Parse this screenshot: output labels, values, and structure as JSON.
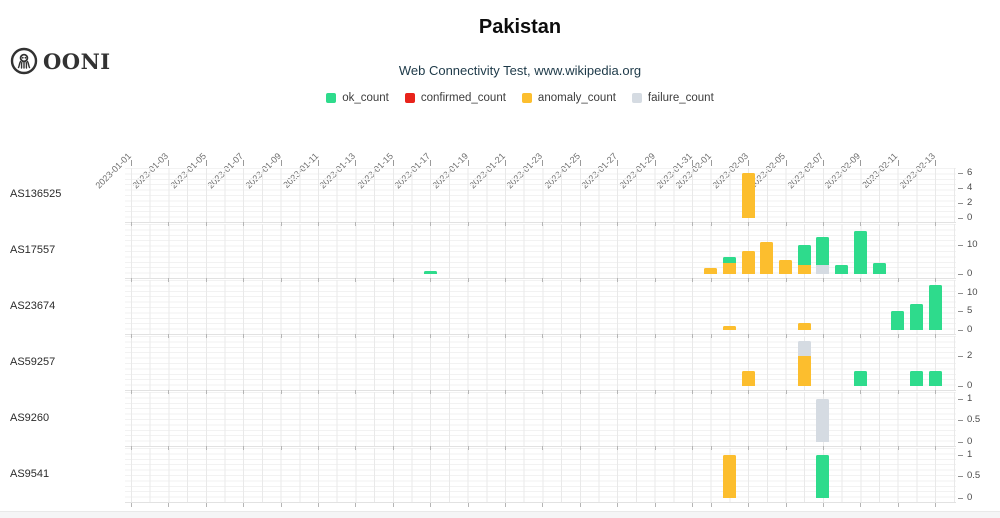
{
  "header": {
    "logo_text": "OONI",
    "title": "Pakistan",
    "subtitle": "Web Connectivity Test, www.wikipedia.org"
  },
  "legend": [
    {
      "label": "ok_count",
      "color": "#2EDB8C"
    },
    {
      "label": "confirmed_count",
      "color": "#E8231B"
    },
    {
      "label": "anomaly_count",
      "color": "#FCBE2E"
    },
    {
      "label": "failure_count",
      "color": "#D5DBE2"
    }
  ],
  "chart_data": {
    "type": "bar",
    "stacked": true,
    "grid": true,
    "legend_position": "top",
    "x_range": [
      "2023-01-01",
      "2023-02-14"
    ],
    "x_tick_labels": [
      "2023-01-01",
      "2023-01-03",
      "2023-01-05",
      "2023-01-07",
      "2023-01-09",
      "2023-01-11",
      "2023-01-13",
      "2023-01-15",
      "2023-01-17",
      "2023-01-19",
      "2023-01-21",
      "2023-01-23",
      "2023-01-25",
      "2023-01-27",
      "2023-01-29",
      "2023-01-31",
      "2023-02-01",
      "2023-02-03",
      "2023-02-05",
      "2023-02-07",
      "2023-02-09",
      "2023-02-11",
      "2023-02-13"
    ],
    "rows": [
      {
        "label": "AS136525",
        "yticks": [
          0,
          2,
          4,
          6
        ],
        "ylim": [
          0,
          6.2
        ],
        "bars": [
          {
            "date": "2023-02-03",
            "stacks": [
              {
                "series": "anomaly_count",
                "value": 6
              }
            ]
          }
        ]
      },
      {
        "label": "AS17557",
        "yticks": [
          0,
          10
        ],
        "ylim": [
          0,
          16
        ],
        "bars": [
          {
            "date": "2023-01-17",
            "stacks": [
              {
                "series": "ok_count",
                "value": 1
              }
            ]
          },
          {
            "date": "2023-02-01",
            "stacks": [
              {
                "series": "anomaly_count",
                "value": 2
              }
            ]
          },
          {
            "date": "2023-02-02",
            "stacks": [
              {
                "series": "anomaly_count",
                "value": 4
              },
              {
                "series": "ok_count",
                "value": 2
              }
            ]
          },
          {
            "date": "2023-02-03",
            "stacks": [
              {
                "series": "anomaly_count",
                "value": 8
              }
            ]
          },
          {
            "date": "2023-02-04",
            "stacks": [
              {
                "series": "anomaly_count",
                "value": 11
              }
            ]
          },
          {
            "date": "2023-02-05",
            "stacks": [
              {
                "series": "anomaly_count",
                "value": 5
              }
            ]
          },
          {
            "date": "2023-02-06",
            "stacks": [
              {
                "series": "anomaly_count",
                "value": 3
              },
              {
                "series": "ok_count",
                "value": 7
              }
            ]
          },
          {
            "date": "2023-02-07",
            "stacks": [
              {
                "series": "failure_count",
                "value": 3
              },
              {
                "series": "ok_count",
                "value": 10
              }
            ]
          },
          {
            "date": "2023-02-08",
            "stacks": [
              {
                "series": "ok_count",
                "value": 3
              }
            ]
          },
          {
            "date": "2023-02-09",
            "stacks": [
              {
                "series": "ok_count",
                "value": 15
              }
            ]
          },
          {
            "date": "2023-02-10",
            "stacks": [
              {
                "series": "ok_count",
                "value": 4
              }
            ]
          }
        ]
      },
      {
        "label": "AS23674",
        "yticks": [
          0,
          5,
          10
        ],
        "ylim": [
          0,
          12.3
        ],
        "bars": [
          {
            "date": "2023-02-02",
            "stacks": [
              {
                "series": "anomaly_count",
                "value": 1
              }
            ]
          },
          {
            "date": "2023-02-06",
            "stacks": [
              {
                "series": "anomaly_count",
                "value": 2
              }
            ]
          },
          {
            "date": "2023-02-11",
            "stacks": [
              {
                "series": "ok_count",
                "value": 5
              }
            ]
          },
          {
            "date": "2023-02-12",
            "stacks": [
              {
                "series": "ok_count",
                "value": 7
              }
            ]
          },
          {
            "date": "2023-02-13",
            "stacks": [
              {
                "series": "ok_count",
                "value": 12
              }
            ]
          }
        ]
      },
      {
        "label": "AS59257",
        "yticks": [
          0,
          2
        ],
        "ylim": [
          0,
          3.1
        ],
        "bars": [
          {
            "date": "2023-02-03",
            "stacks": [
              {
                "series": "anomaly_count",
                "value": 1
              }
            ]
          },
          {
            "date": "2023-02-06",
            "stacks": [
              {
                "series": "anomaly_count",
                "value": 2
              },
              {
                "series": "failure_count",
                "value": 1
              }
            ]
          },
          {
            "date": "2023-02-09",
            "stacks": [
              {
                "series": "ok_count",
                "value": 1
              }
            ]
          },
          {
            "date": "2023-02-12",
            "stacks": [
              {
                "series": "ok_count",
                "value": 1
              }
            ]
          },
          {
            "date": "2023-02-13",
            "stacks": [
              {
                "series": "ok_count",
                "value": 1
              }
            ]
          }
        ]
      },
      {
        "label": "AS9260",
        "yticks": [
          0,
          0.5,
          1
        ],
        "ylim": [
          0,
          1.06
        ],
        "bars": [
          {
            "date": "2023-02-07",
            "stacks": [
              {
                "series": "failure_count",
                "value": 1
              }
            ]
          }
        ]
      },
      {
        "label": "AS9541",
        "yticks": [
          0,
          0.5,
          1
        ],
        "ylim": [
          0,
          1.06
        ],
        "bars": [
          {
            "date": "2023-02-02",
            "stacks": [
              {
                "series": "anomaly_count",
                "value": 1
              }
            ]
          },
          {
            "date": "2023-02-07",
            "stacks": [
              {
                "series": "ok_count",
                "value": 1
              }
            ]
          }
        ]
      }
    ]
  }
}
